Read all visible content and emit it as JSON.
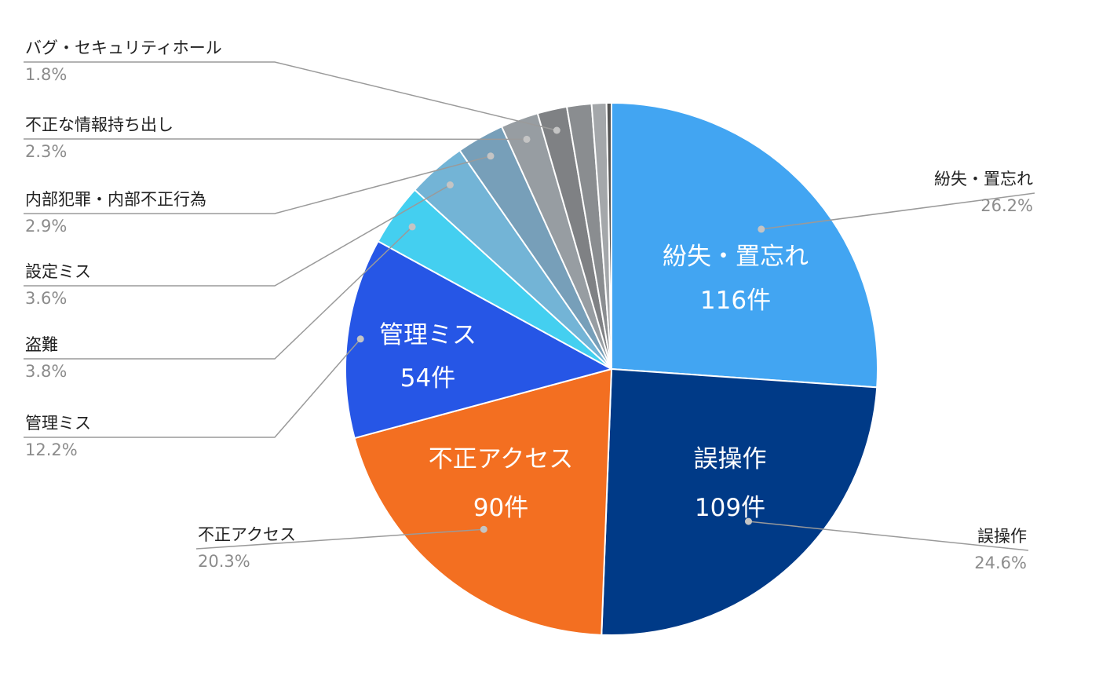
{
  "chart_data": {
    "type": "pie",
    "title": "",
    "slices": [
      {
        "label": "紛失・置忘れ",
        "percent": "26.2%",
        "value": 26.2,
        "color": "#42a5f2",
        "inside_label": "紛失・置忘れ",
        "inside_count": "116件"
      },
      {
        "label": "誤操作",
        "percent": "24.6%",
        "value": 24.6,
        "color": "#003a87",
        "inside_label": "誤操作",
        "inside_count": "109件"
      },
      {
        "label": "不正アクセス",
        "percent": "20.3%",
        "value": 20.3,
        "color": "#f36f21",
        "inside_label": "不正アクセス",
        "inside_count": "90件"
      },
      {
        "label": "管理ミス",
        "percent": "12.2%",
        "value": 12.2,
        "color": "#2656e6",
        "inside_label": "管理ミス",
        "inside_count": "54件"
      },
      {
        "label": "盗難",
        "percent": "3.8%",
        "value": 3.8,
        "color": "#44cff0"
      },
      {
        "label": "設定ミス",
        "percent": "3.6%",
        "value": 3.6,
        "color": "#73b4d6"
      },
      {
        "label": "内部犯罪・内部不正行為",
        "percent": "2.9%",
        "value": 2.9,
        "color": "#779fb9"
      },
      {
        "label": "不正な情報持ち出し",
        "percent": "2.3%",
        "value": 2.3,
        "color": "#979da2"
      },
      {
        "label": "バグ・セキュリティホール",
        "percent": "1.8%",
        "value": 1.8,
        "color": "#7f8184"
      },
      {
        "label": "",
        "percent": "",
        "value": 1.5,
        "color": "#8a8d90"
      },
      {
        "label": "",
        "percent": "",
        "value": 0.9,
        "color": "#a4a7aa"
      },
      {
        "label": "",
        "percent": "",
        "value": 0.3,
        "color": "#555555"
      }
    ]
  }
}
